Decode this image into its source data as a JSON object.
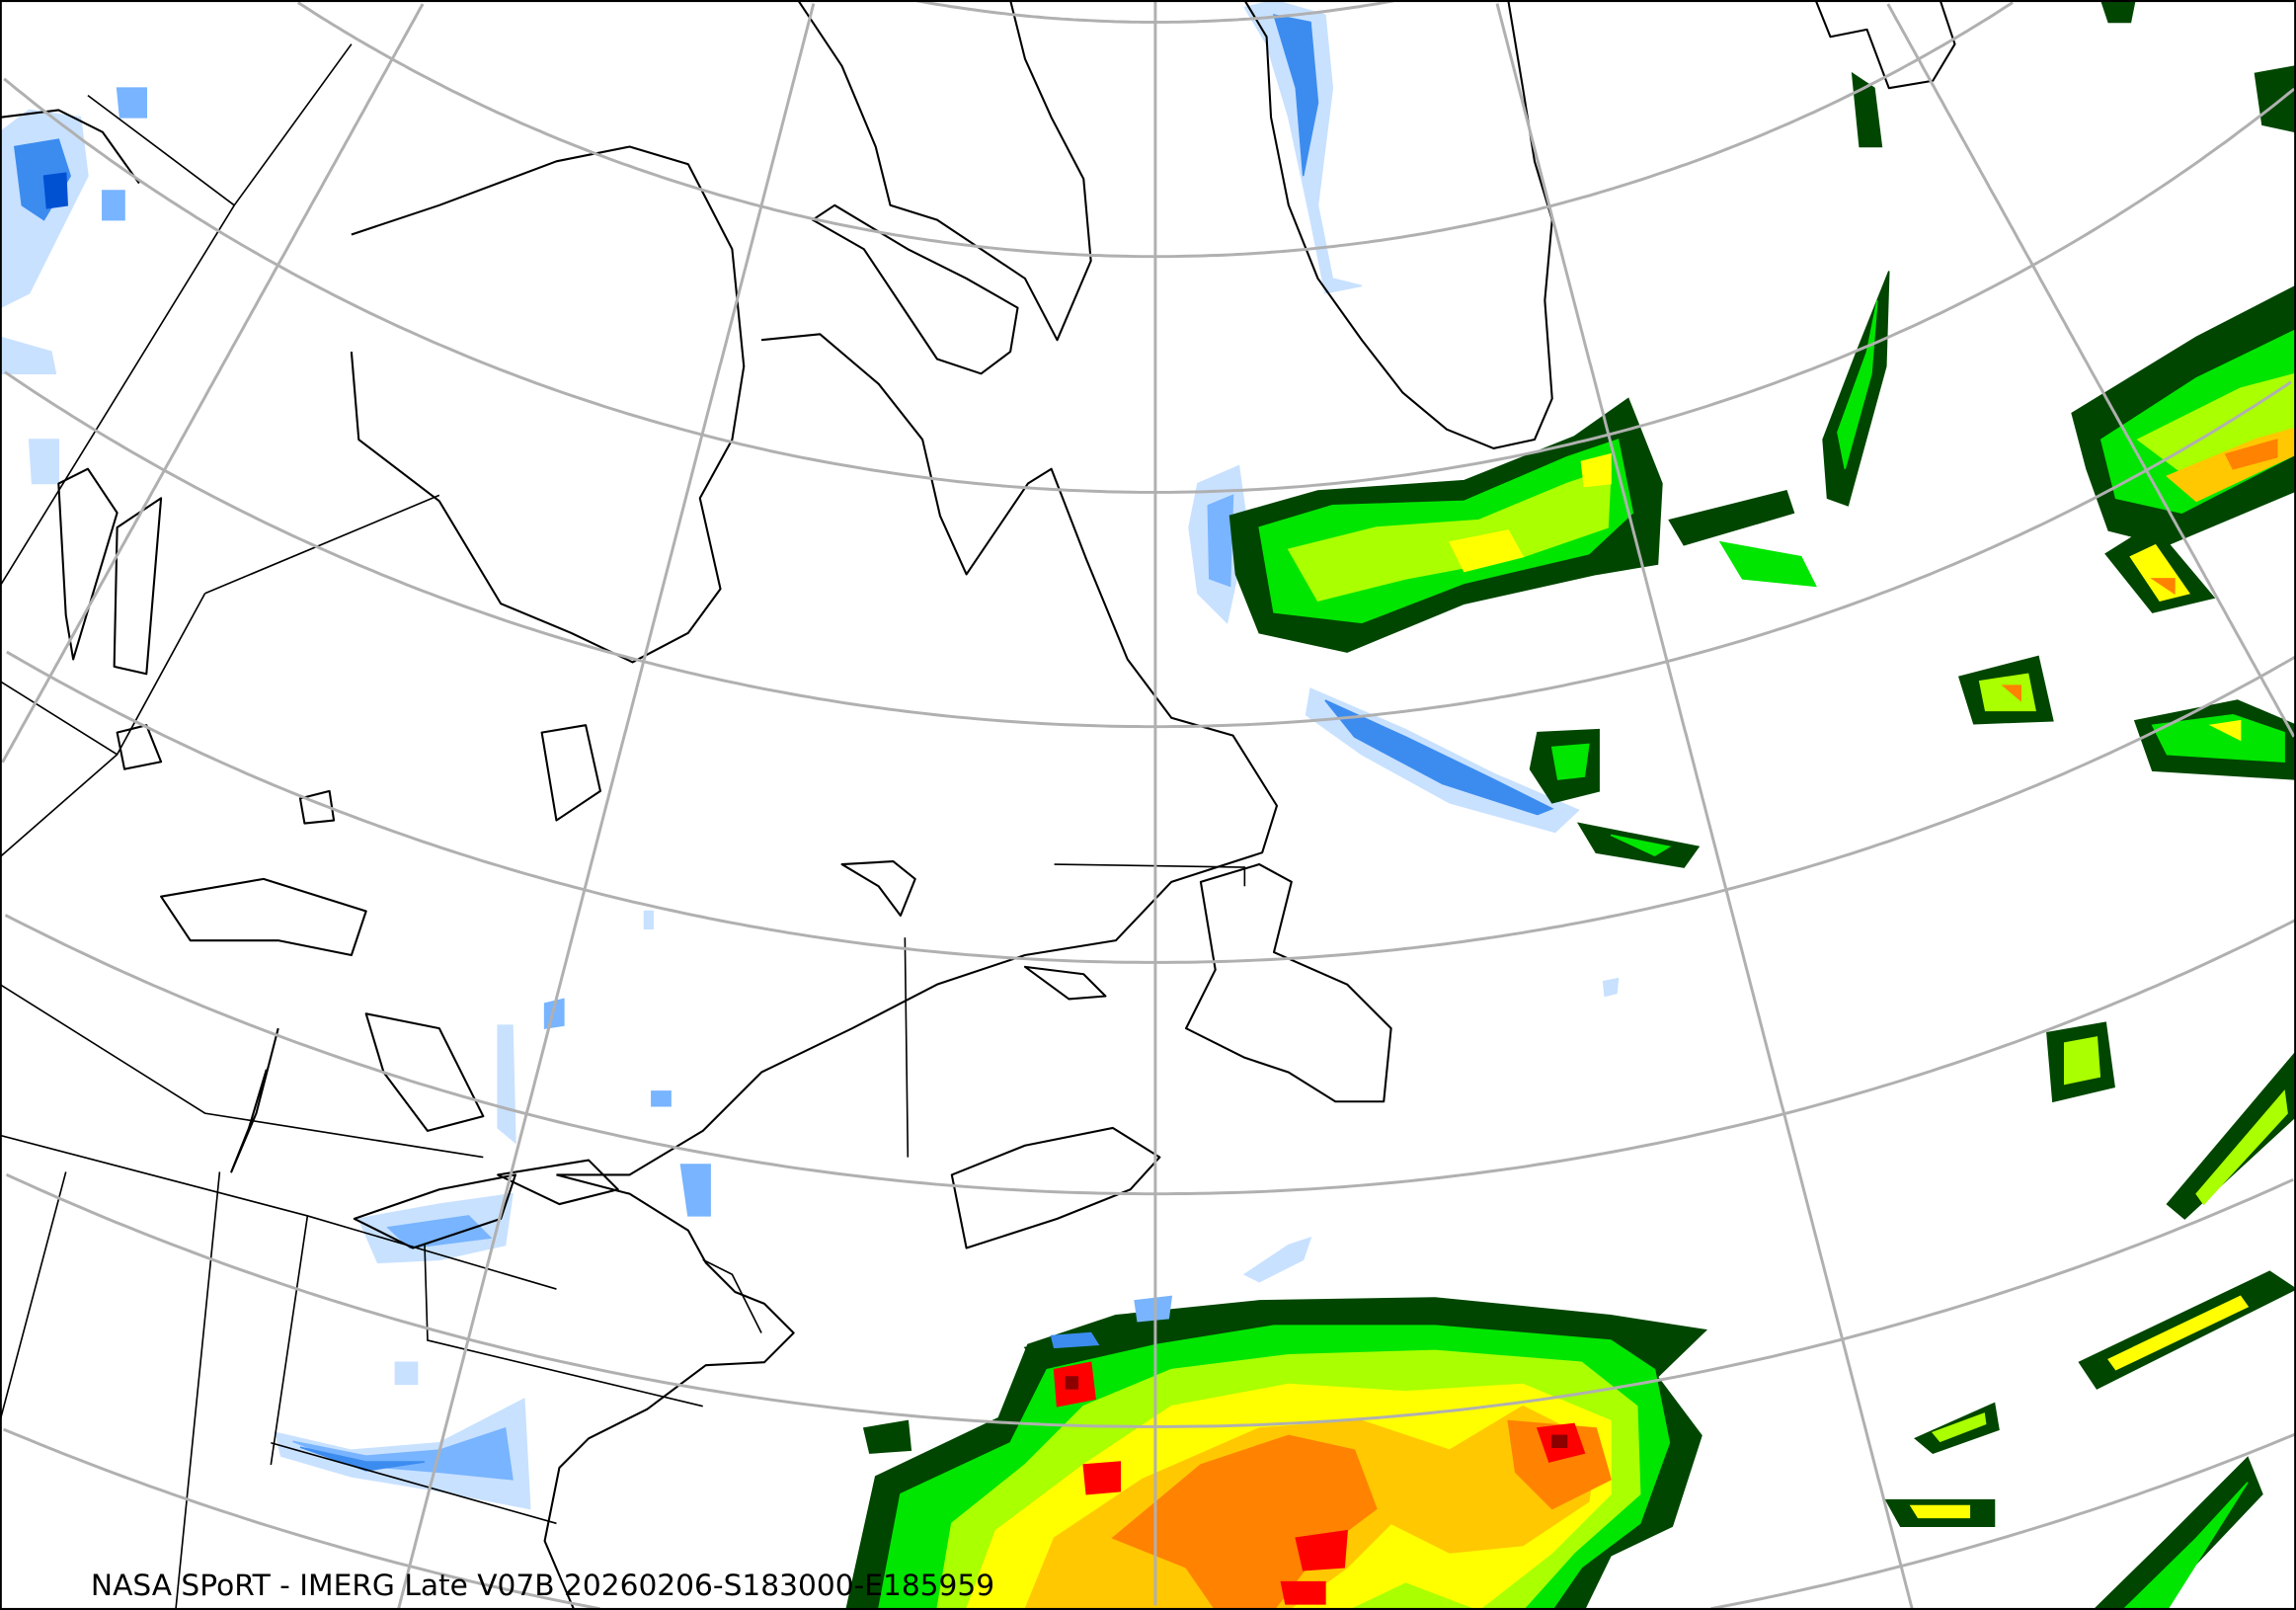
{
  "caption": "NASA SPoRT - IMERG Late V07B 20260206-S183000-E185959",
  "map": {
    "product": "IMERG Late V07B precipitation",
    "graticule": "on",
    "colors": {
      "graticule": "#b0b0b0",
      "coastline": "#000000",
      "precip_scale": [
        "#c8e1ff",
        "#78b4ff",
        "#3c8cf0",
        "#0050d2",
        "#004600",
        "#009600",
        "#00e600",
        "#aaff00",
        "#ffff00",
        "#ffc800",
        "#ff8200",
        "#ff0000",
        "#8c0000"
      ]
    }
  }
}
